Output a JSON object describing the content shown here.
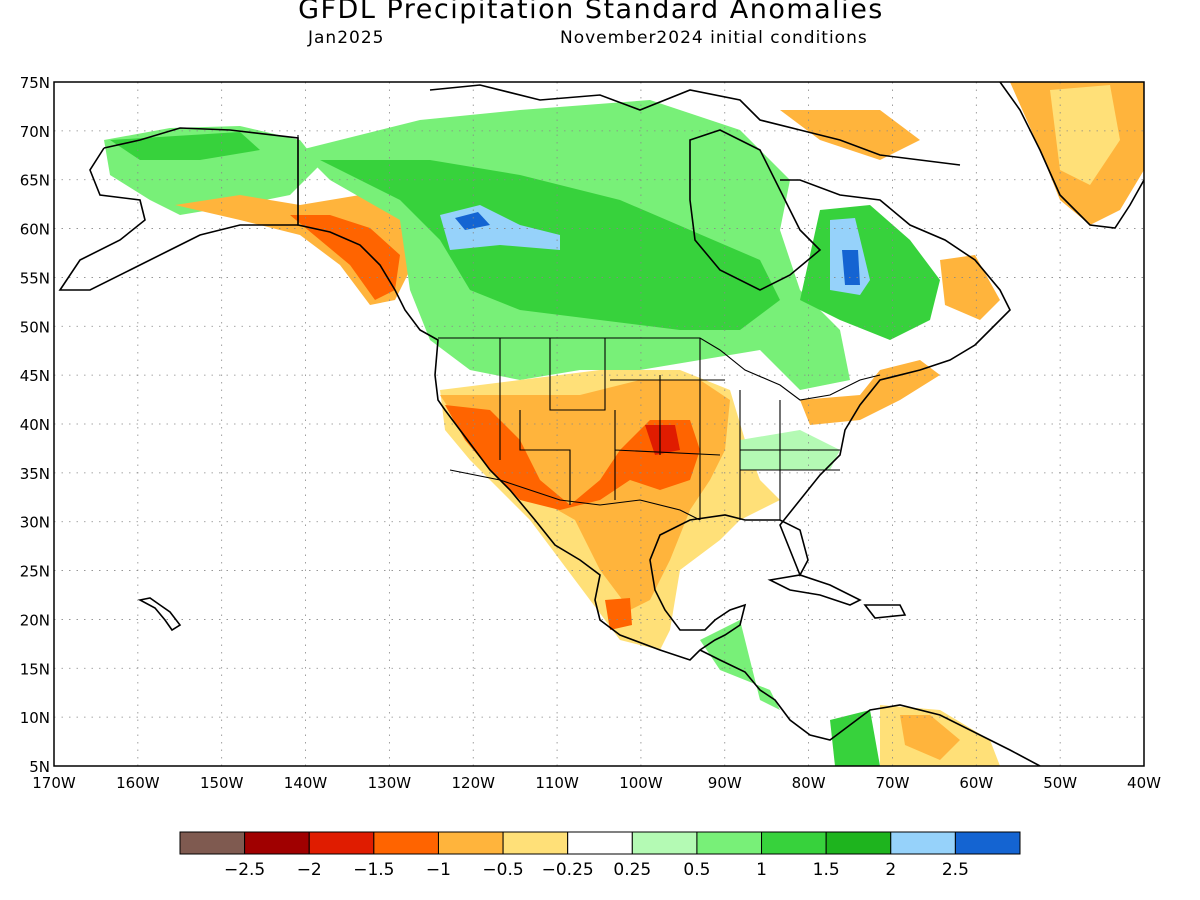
{
  "title": "GFDL Precipitation Standard Anomalies",
  "valid_month": "Jan2025",
  "init_conditions": "November2024 initial conditions",
  "map": {
    "lon_min": -170,
    "lon_max": -40,
    "lat_min": 5,
    "lat_max": 75,
    "lat_labels": [
      "75N",
      "70N",
      "65N",
      "60N",
      "55N",
      "50N",
      "45N",
      "40N",
      "35N",
      "30N",
      "25N",
      "20N",
      "15N",
      "10N",
      "5N"
    ],
    "lon_labels": [
      "170W",
      "160W",
      "150W",
      "140W",
      "130W",
      "120W",
      "110W",
      "100W",
      "90W",
      "80W",
      "70W",
      "60W",
      "50W",
      "40W"
    ],
    "regions": [
      {
        "lon": -155,
        "lat": 68,
        "cat": "1"
      },
      {
        "lon": -148,
        "lat": 64,
        "cat": "1.5"
      },
      {
        "lon": -135,
        "lat": 61,
        "cat": "-1"
      },
      {
        "lon": -129,
        "lat": 56,
        "cat": "-1.5"
      },
      {
        "lon": -112,
        "lat": 60,
        "cat": "2"
      },
      {
        "lon": -103,
        "lat": 53,
        "cat": "1"
      },
      {
        "lon": -90,
        "lat": 56,
        "cat": "1"
      },
      {
        "lon": -112,
        "lat": 47,
        "cat": "0.5"
      },
      {
        "lon": -120,
        "lat": 40,
        "cat": "-1"
      },
      {
        "lon": -110,
        "lat": 36,
        "cat": "-1.5"
      },
      {
        "lon": -99,
        "lat": 40,
        "cat": "-1.5"
      },
      {
        "lon": -90,
        "lat": 44,
        "cat": "-0.5"
      },
      {
        "lon": -104,
        "lat": 26,
        "cat": "-0.5"
      },
      {
        "lon": -81,
        "lat": 37,
        "cat": "0.25"
      },
      {
        "lon": -72,
        "lat": 55,
        "cat": "1.5"
      },
      {
        "lon": -58,
        "lat": 70,
        "cat": "-0.5"
      },
      {
        "lon": -80,
        "lat": 49,
        "cat": "1"
      },
      {
        "lon": -88,
        "lat": 15,
        "cat": "1"
      },
      {
        "lon": -68,
        "lat": 8,
        "cat": "-0.25"
      }
    ]
  },
  "colorbar": {
    "colors": [
      "#7f5a50",
      "#a00000",
      "#e01c00",
      "#ff6400",
      "#ffb43c",
      "#ffe078",
      "#ffffff",
      "#b4fab4",
      "#78f078",
      "#37d23c",
      "#1eb41e",
      "#96d2fa",
      "#1464d2"
    ],
    "labels": [
      "-2.5",
      "-2",
      "-1.5",
      "-1",
      "-0.5",
      "-0.25",
      "0.25",
      "0.5",
      "1",
      "1.5",
      "2",
      "2.5"
    ]
  }
}
